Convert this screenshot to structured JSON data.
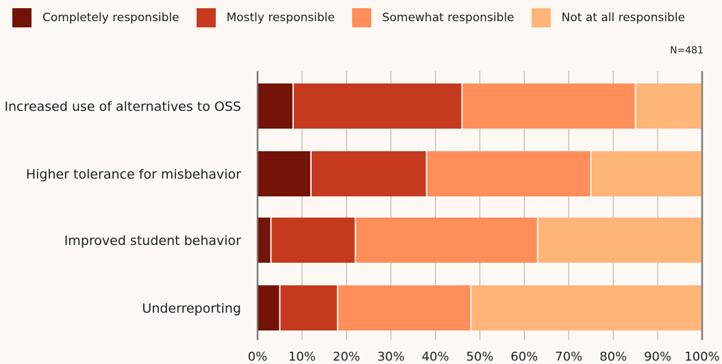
{
  "legend": [
    {
      "label": "Completely responsible",
      "color": "#741307"
    },
    {
      "label": "Mostly responsible",
      "color": "#c53a1f"
    },
    {
      "label": "Somewhat responsible",
      "color": "#ff8e5a"
    },
    {
      "label": "Not at all responsible",
      "color": "#ffb478"
    }
  ],
  "note": "N=481",
  "chart_data": {
    "type": "bar",
    "orientation": "horizontal",
    "stacked": true,
    "categories": [
      "Increased use of alternatives to OSS",
      "Higher tolerance for misbehavior",
      "Improved student behavior",
      "Underreporting"
    ],
    "series": [
      {
        "name": "Completely responsible",
        "color": "#741307",
        "values": [
          8,
          12,
          3,
          5
        ]
      },
      {
        "name": "Mostly responsible",
        "color": "#c53a1f",
        "values": [
          38,
          26,
          19,
          13
        ]
      },
      {
        "name": "Somewhat responsible",
        "color": "#ff8e5a",
        "values": [
          39,
          37,
          41,
          30
        ]
      },
      {
        "name": "Not at all responsible",
        "color": "#ffb478",
        "values": [
          15,
          25,
          37,
          52
        ]
      }
    ],
    "xlim": [
      0,
      100
    ],
    "xticks": [
      "0%",
      "10%",
      "20%",
      "30%",
      "40%",
      "50%",
      "60%",
      "70%",
      "80%",
      "90%",
      "100%"
    ],
    "grid": true,
    "legend_position": "top",
    "title": "",
    "xlabel": "",
    "ylabel": ""
  }
}
